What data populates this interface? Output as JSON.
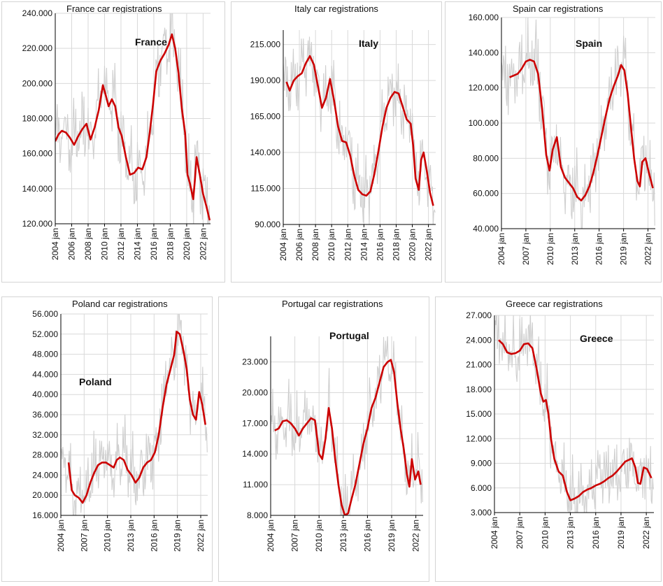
{
  "colors": {
    "trend": "#cc0000",
    "raw": "#cfcfcf",
    "grid": "#d9d9d9",
    "axis": "#000000"
  },
  "chart_data": [
    {
      "type": "line",
      "title": "France car registrations",
      "label": "France",
      "y_ticks": [
        "120.000",
        "140.000",
        "160.000",
        "180.000",
        "200.000",
        "220.000",
        "240.000"
      ],
      "ylim": [
        120000,
        240000
      ],
      "x_ticks": [
        "2004 jan",
        "2006 jan",
        "2008 jan",
        "2010 jan",
        "2012 jan",
        "2014 jan",
        "2016 jan",
        "2018 jan",
        "2020 jan",
        "2022 jan"
      ],
      "xlim": [
        2004.0,
        2022.9
      ],
      "series": [
        {
          "x": [
            2004.0,
            2004.4,
            2004.8,
            2005.3,
            2005.8,
            2006.3,
            2006.8,
            2007.3,
            2007.8,
            2008.3,
            2008.8,
            2009.3,
            2009.8,
            2010.1,
            2010.5,
            2010.9,
            2011.3,
            2011.7,
            2012.1,
            2012.6,
            2013.1,
            2013.6,
            2014.1,
            2014.6,
            2015.1,
            2015.5,
            2015.9,
            2016.3,
            2016.8,
            2017.3,
            2017.8,
            2018.2,
            2018.6,
            2019.0,
            2019.4,
            2019.8,
            2020.1,
            2020.4,
            2020.8,
            2021.0,
            2021.2,
            2021.6,
            2022.0,
            2022.4,
            2022.8
          ],
          "y": [
            167000,
            171000,
            173000,
            172000,
            169000,
            165000,
            170000,
            174000,
            177000,
            168000,
            175000,
            185000,
            199000,
            194000,
            187000,
            191000,
            187000,
            175000,
            170000,
            158000,
            148000,
            149000,
            152000,
            151000,
            158000,
            172000,
            188000,
            207000,
            213000,
            217000,
            222000,
            228000,
            220000,
            206000,
            186000,
            172000,
            148000,
            143000,
            134000,
            145000,
            158000,
            148000,
            137000,
            130000,
            122000
          ]
        }
      ]
    },
    {
      "type": "line",
      "title": "Italy car registrations",
      "label": "Italy",
      "y_ticks": [
        "90.000",
        "115.000",
        "140.000",
        "165.000",
        "190.000",
        "215.000"
      ],
      "ylim": [
        90000,
        225000
      ],
      "x_ticks": [
        "2004 jan",
        "2006 jan",
        "2008 jan",
        "2010 jan",
        "2012 jan",
        "2014 jan",
        "2016 jan",
        "2018 jan",
        "2020 jan",
        "2022 jan"
      ],
      "xlim": [
        2004.0,
        2022.9
      ],
      "series": [
        {
          "x": [
            2004.4,
            2004.8,
            2005.3,
            2005.8,
            2006.3,
            2006.8,
            2007.3,
            2007.8,
            2008.3,
            2008.8,
            2009.3,
            2009.8,
            2010.3,
            2010.8,
            2011.3,
            2011.8,
            2012.3,
            2012.8,
            2013.3,
            2013.8,
            2014.3,
            2014.8,
            2015.3,
            2015.8,
            2016.3,
            2016.8,
            2017.3,
            2017.8,
            2018.3,
            2018.8,
            2019.3,
            2019.8,
            2020.1,
            2020.4,
            2020.8,
            2021.1,
            2021.4,
            2021.8,
            2022.2,
            2022.6
          ],
          "y": [
            189000,
            183000,
            190000,
            193000,
            195000,
            202000,
            207000,
            201000,
            186000,
            171000,
            178000,
            191000,
            176000,
            158000,
            148000,
            147000,
            138000,
            124000,
            114000,
            111000,
            110000,
            113000,
            125000,
            141000,
            158000,
            171000,
            178000,
            182000,
            181000,
            172000,
            163000,
            160000,
            145000,
            122000,
            114000,
            135000,
            140000,
            127000,
            112000,
            103000
          ]
        }
      ]
    },
    {
      "type": "line",
      "title": "Spain car registrations",
      "label": "Spain",
      "y_ticks": [
        "40.000",
        "60.000",
        "80.000",
        "100.000",
        "120.000",
        "140.000",
        "160.000"
      ],
      "ylim": [
        40000,
        160000
      ],
      "x_ticks": [
        "2004 jan",
        "2007 jan",
        "2010 jan",
        "2013 jan",
        "2016 jan",
        "2019 jan",
        "2022 jan"
      ],
      "xlim": [
        2004.0,
        2022.9
      ],
      "series": [
        {
          "x": [
            2005.0,
            2005.5,
            2006.0,
            2006.5,
            2007.0,
            2007.5,
            2008.0,
            2008.5,
            2009.0,
            2009.5,
            2009.9,
            2010.3,
            2010.8,
            2011.3,
            2011.8,
            2012.3,
            2012.8,
            2013.3,
            2013.8,
            2014.3,
            2014.8,
            2015.3,
            2015.8,
            2016.3,
            2016.8,
            2017.3,
            2017.8,
            2018.3,
            2018.7,
            2019.1,
            2019.5,
            2019.9,
            2020.3,
            2020.7,
            2021.0,
            2021.3,
            2021.7,
            2022.1,
            2022.6
          ],
          "y": [
            126000,
            127000,
            128000,
            131000,
            135000,
            136000,
            135000,
            128000,
            108000,
            82000,
            73000,
            85000,
            92000,
            75000,
            69000,
            66000,
            63000,
            58000,
            56000,
            59000,
            64000,
            72000,
            82000,
            93000,
            104000,
            114000,
            121000,
            127000,
            133000,
            130000,
            117000,
            98000,
            80000,
            67000,
            64000,
            78000,
            80000,
            72000,
            63000
          ]
        }
      ]
    },
    {
      "type": "line",
      "title": "Poland car registrations",
      "label": "Poland",
      "y_ticks": [
        "16.000",
        "20.000",
        "24.000",
        "28.000",
        "32.000",
        "36.000",
        "40.000",
        "44.000",
        "48.000",
        "52.000",
        "56.000"
      ],
      "ylim": [
        16000,
        56000
      ],
      "x_ticks": [
        "2004 jan",
        "2007 jan",
        "2010 jan",
        "2013 jan",
        "2016 jan",
        "2019 jan",
        "2022 jan"
      ],
      "xlim": [
        2004.0,
        2022.9
      ],
      "series": [
        {
          "x": [
            2005.0,
            2005.4,
            2005.8,
            2006.3,
            2006.8,
            2007.3,
            2007.8,
            2008.3,
            2008.8,
            2009.3,
            2009.8,
            2010.3,
            2010.8,
            2011.2,
            2011.6,
            2012.1,
            2012.6,
            2013.1,
            2013.6,
            2014.1,
            2014.6,
            2015.1,
            2015.6,
            2016.1,
            2016.6,
            2017.1,
            2017.6,
            2018.1,
            2018.6,
            2018.9,
            2019.3,
            2019.8,
            2020.2,
            2020.6,
            2021.0,
            2021.4,
            2021.8,
            2022.2,
            2022.6
          ],
          "y": [
            26500,
            21000,
            20000,
            19500,
            18500,
            20000,
            22500,
            24500,
            26000,
            26500,
            26500,
            26000,
            25500,
            27000,
            27500,
            27000,
            25000,
            24000,
            22500,
            23500,
            25500,
            26500,
            27000,
            28500,
            32000,
            37500,
            42000,
            45000,
            48000,
            52500,
            52000,
            48500,
            45000,
            39000,
            36000,
            35000,
            40500,
            38000,
            34000
          ]
        }
      ]
    },
    {
      "type": "line",
      "title": "Portugal car registrations",
      "label": "Portugal",
      "y_ticks": [
        "8.000",
        "11.000",
        "14.000",
        "17.000",
        "20.000",
        "23.000"
      ],
      "ylim": [
        8000,
        25500
      ],
      "x_ticks": [
        "2004 jan",
        "2007 jan",
        "2010 jan",
        "2013 jan",
        "2016 jan",
        "2019 jan",
        "2022 jan"
      ],
      "xlim": [
        2004.0,
        2022.9
      ],
      "series": [
        {
          "x": [
            2004.5,
            2005.0,
            2005.5,
            2006.0,
            2006.5,
            2007.0,
            2007.5,
            2008.0,
            2008.5,
            2009.0,
            2009.5,
            2010.0,
            2010.4,
            2010.8,
            2011.2,
            2011.6,
            2012.0,
            2012.4,
            2012.8,
            2013.2,
            2013.6,
            2014.0,
            2014.5,
            2015.0,
            2015.5,
            2016.0,
            2016.5,
            2017.0,
            2017.5,
            2018.0,
            2018.5,
            2018.9,
            2019.3,
            2019.7,
            2020.1,
            2020.5,
            2020.9,
            2021.2,
            2021.5,
            2021.9,
            2022.3,
            2022.6
          ],
          "y": [
            16300,
            16500,
            17200,
            17300,
            17000,
            16500,
            15800,
            16500,
            17000,
            17500,
            17300,
            14000,
            13500,
            15500,
            18500,
            16500,
            13500,
            11000,
            9000,
            8000,
            8200,
            9500,
            11000,
            13000,
            15000,
            16500,
            18500,
            19500,
            21000,
            22500,
            23000,
            23200,
            22000,
            19000,
            16500,
            14500,
            12000,
            10800,
            13500,
            11500,
            12300,
            11000
          ]
        }
      ]
    },
    {
      "type": "line",
      "title": "Greece car registrations",
      "label": "Greece",
      "y_ticks": [
        "3.000",
        "6.000",
        "9.000",
        "12.000",
        "15.000",
        "18.000",
        "21.000",
        "24.000",
        "27.000"
      ],
      "ylim": [
        3000,
        27000
      ],
      "x_ticks": [
        "2004 jan",
        "2007 jan",
        "2010 jan",
        "2013 jan",
        "2016 jan",
        "2019 jan",
        "2022 jan"
      ],
      "xlim": [
        2004.0,
        2022.9
      ],
      "series": [
        {
          "x": [
            2004.5,
            2005.0,
            2005.5,
            2006.0,
            2006.5,
            2007.0,
            2007.5,
            2008.0,
            2008.5,
            2009.0,
            2009.5,
            2009.8,
            2010.1,
            2010.4,
            2010.7,
            2011.1,
            2011.6,
            2012.1,
            2012.6,
            2013.0,
            2013.5,
            2014.0,
            2014.5,
            2015.0,
            2015.5,
            2016.0,
            2016.5,
            2017.0,
            2017.5,
            2018.0,
            2018.5,
            2019.0,
            2019.5,
            2019.9,
            2020.3,
            2020.7,
            2021.0,
            2021.3,
            2021.7,
            2022.1,
            2022.6
          ],
          "y": [
            24000,
            23500,
            22500,
            22300,
            22400,
            22700,
            23500,
            23600,
            23000,
            20500,
            17500,
            16500,
            16700,
            15000,
            12000,
            9500,
            8000,
            7500,
            5500,
            4500,
            4700,
            5000,
            5500,
            5800,
            6000,
            6300,
            6500,
            6800,
            7200,
            7500,
            8000,
            8600,
            9200,
            9400,
            9600,
            8500,
            6600,
            6500,
            8500,
            8300,
            7200
          ]
        }
      ]
    }
  ]
}
